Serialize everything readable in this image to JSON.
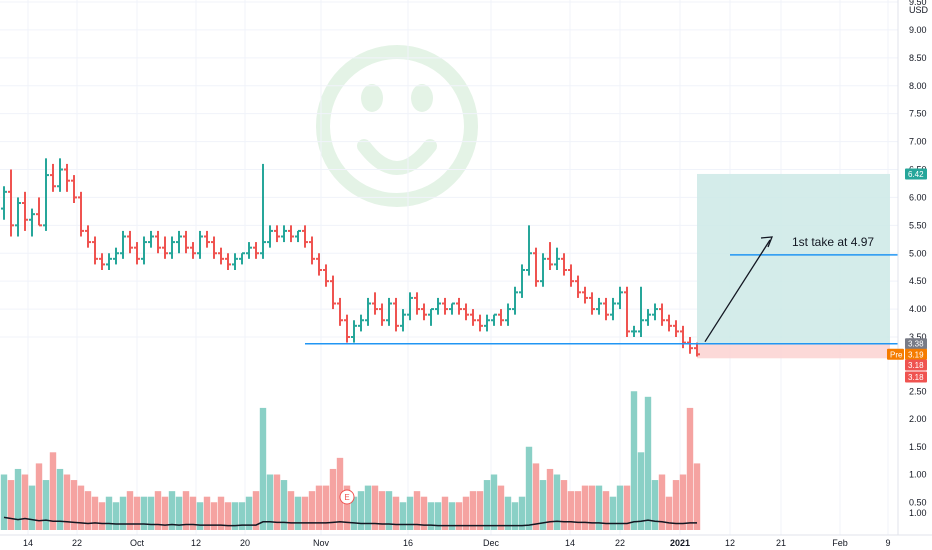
{
  "chart_data": {
    "type": "ohlc",
    "currency_label": "USD",
    "price_axis": {
      "ylim": [
        2.5,
        9.5
      ],
      "ticks": [
        "9.50",
        "9.00",
        "8.50",
        "8.00",
        "7.50",
        "7.00",
        "6.50",
        "6.00",
        "5.50",
        "5.00",
        "4.50",
        "4.00",
        "3.50"
      ]
    },
    "volume_axis": {
      "ylim": [
        0,
        2.9
      ],
      "ticks": [
        "2.50",
        "2.00",
        "1.50",
        "1.00",
        "0.50"
      ]
    },
    "indicator_axis": {
      "ticks": [
        "1.00"
      ]
    },
    "x_ticks": [
      "14",
      "22",
      "Oct",
      "12",
      "20",
      "Nov",
      "16",
      "Dec",
      "14",
      "22",
      "2021",
      "12",
      "21",
      "Feb",
      "9"
    ],
    "price_tags": [
      {
        "label": "6.42",
        "value": 6.42,
        "color": "#26a69a"
      },
      {
        "label": "3.38",
        "value": 3.38,
        "color": "#787b86"
      },
      {
        "label": "3.19",
        "prefix": "Pre",
        "value": 3.19,
        "color": "#f57c00"
      },
      {
        "label": "3.18",
        "value": 3.18,
        "color": "#ef5350"
      },
      {
        "label": "3.18",
        "value": 3.18,
        "color": "#ef5350"
      }
    ],
    "annotation": {
      "text": "1st take at 4.97",
      "target_price": 4.97
    },
    "support_level": 3.38,
    "position": {
      "entry": 3.38,
      "target": 6.42,
      "stop": 3.19
    },
    "earnings_marker": "E",
    "colors": {
      "up": "#26a69a",
      "down": "#ef5350",
      "line": "#2196f3",
      "smiley": "#e4f3e6",
      "profit": "#cde9e6",
      "loss": "#fbd2d1"
    },
    "bars": [
      [
        5.8,
        6.2,
        5.6,
        6.1
      ],
      [
        6.1,
        6.5,
        5.3,
        5.5
      ],
      [
        5.5,
        6.0,
        5.3,
        5.9
      ],
      [
        5.9,
        6.1,
        5.4,
        5.6
      ],
      [
        5.6,
        5.8,
        5.3,
        5.7
      ],
      [
        5.7,
        6.0,
        5.5,
        5.5
      ],
      [
        5.5,
        6.7,
        5.4,
        6.4
      ],
      [
        6.4,
        6.6,
        6.1,
        6.2
      ],
      [
        6.2,
        6.7,
        6.1,
        6.5
      ],
      [
        6.5,
        6.6,
        6.1,
        6.3
      ],
      [
        6.3,
        6.4,
        5.9,
        6.0
      ],
      [
        6.0,
        6.1,
        5.3,
        5.4
      ],
      [
        5.4,
        5.5,
        5.1,
        5.2
      ],
      [
        5.2,
        5.3,
        4.8,
        4.9
      ],
      [
        4.9,
        5.0,
        4.7,
        4.8
      ],
      [
        4.8,
        5.0,
        4.7,
        4.9
      ],
      [
        4.9,
        5.1,
        4.8,
        5.0
      ],
      [
        5.0,
        5.4,
        4.9,
        5.3
      ],
      [
        5.3,
        5.4,
        5.0,
        5.1
      ],
      [
        5.1,
        5.2,
        4.8,
        4.9
      ],
      [
        4.9,
        5.3,
        4.8,
        5.2
      ],
      [
        5.2,
        5.4,
        5.1,
        5.3
      ],
      [
        5.3,
        5.4,
        5.0,
        5.1
      ],
      [
        5.1,
        5.3,
        4.9,
        5.0
      ],
      [
        5.0,
        5.3,
        4.9,
        5.2
      ],
      [
        5.2,
        5.4,
        5.0,
        5.3
      ],
      [
        5.3,
        5.4,
        5.0,
        5.1
      ],
      [
        5.1,
        5.2,
        4.9,
        5.0
      ],
      [
        5.0,
        5.4,
        4.9,
        5.3
      ],
      [
        5.3,
        5.4,
        5.1,
        5.2
      ],
      [
        5.2,
        5.3,
        4.9,
        5.0
      ],
      [
        5.0,
        5.1,
        4.8,
        4.9
      ],
      [
        4.9,
        5.0,
        4.7,
        4.8
      ],
      [
        4.8,
        5.0,
        4.7,
        4.9
      ],
      [
        4.9,
        5.0,
        4.8,
        5.0
      ],
      [
        5.0,
        5.2,
        4.9,
        5.1
      ],
      [
        5.1,
        5.2,
        4.9,
        5.0
      ],
      [
        5.0,
        6.6,
        4.9,
        5.2
      ],
      [
        5.2,
        5.5,
        5.1,
        5.4
      ],
      [
        5.4,
        5.5,
        5.2,
        5.3
      ],
      [
        5.3,
        5.5,
        5.2,
        5.4
      ],
      [
        5.4,
        5.5,
        5.2,
        5.3
      ],
      [
        5.3,
        5.4,
        5.2,
        5.4
      ],
      [
        5.4,
        5.5,
        5.1,
        5.2
      ],
      [
        5.2,
        5.3,
        4.8,
        4.9
      ],
      [
        4.9,
        5.0,
        4.6,
        4.7
      ],
      [
        4.7,
        4.8,
        4.4,
        4.5
      ],
      [
        4.5,
        4.6,
        4.0,
        4.1
      ],
      [
        4.1,
        4.2,
        3.7,
        3.8
      ],
      [
        3.8,
        3.9,
        3.4,
        3.5
      ],
      [
        3.5,
        3.8,
        3.4,
        3.7
      ],
      [
        3.7,
        3.9,
        3.6,
        3.8
      ],
      [
        3.8,
        4.2,
        3.7,
        4.1
      ],
      [
        4.1,
        4.3,
        3.9,
        4.0
      ],
      [
        4.0,
        4.1,
        3.7,
        3.8
      ],
      [
        3.8,
        4.2,
        3.7,
        4.1
      ],
      [
        4.1,
        4.2,
        3.6,
        3.7
      ],
      [
        3.7,
        4.0,
        3.6,
        3.9
      ],
      [
        3.9,
        4.3,
        3.8,
        4.2
      ],
      [
        4.2,
        4.3,
        3.9,
        4.0
      ],
      [
        4.0,
        4.1,
        3.8,
        3.9
      ],
      [
        3.9,
        4.0,
        3.7,
        4.0
      ],
      [
        4.0,
        4.2,
        3.9,
        4.1
      ],
      [
        4.1,
        4.2,
        3.9,
        4.0
      ],
      [
        4.0,
        4.1,
        3.9,
        4.1
      ],
      [
        4.1,
        4.2,
        3.9,
        4.0
      ],
      [
        4.0,
        4.1,
        3.8,
        3.9
      ],
      [
        3.9,
        4.0,
        3.7,
        3.8
      ],
      [
        3.8,
        3.9,
        3.6,
        3.7
      ],
      [
        3.7,
        3.9,
        3.6,
        3.8
      ],
      [
        3.8,
        3.9,
        3.7,
        3.9
      ],
      [
        3.9,
        4.0,
        3.7,
        3.8
      ],
      [
        3.8,
        4.1,
        3.7,
        4.0
      ],
      [
        4.0,
        4.4,
        3.9,
        4.3
      ],
      [
        4.3,
        4.8,
        4.2,
        4.7
      ],
      [
        4.7,
        5.5,
        4.6,
        5.0
      ],
      [
        5.0,
        5.1,
        4.4,
        4.5
      ],
      [
        4.5,
        5.0,
        4.4,
        4.9
      ],
      [
        4.9,
        5.2,
        4.7,
        4.8
      ],
      [
        4.8,
        5.1,
        4.7,
        4.9
      ],
      [
        4.9,
        5.0,
        4.6,
        4.7
      ],
      [
        4.7,
        4.8,
        4.4,
        4.5
      ],
      [
        4.5,
        4.6,
        4.2,
        4.3
      ],
      [
        4.3,
        4.4,
        4.1,
        4.2
      ],
      [
        4.2,
        4.3,
        3.9,
        4.0
      ],
      [
        4.0,
        4.2,
        3.9,
        4.1
      ],
      [
        4.1,
        4.2,
        3.8,
        3.9
      ],
      [
        3.9,
        4.2,
        3.8,
        4.1
      ],
      [
        4.1,
        4.4,
        4.0,
        4.3
      ],
      [
        4.3,
        4.4,
        3.5,
        3.6
      ],
      [
        3.6,
        3.7,
        3.5,
        3.6
      ],
      [
        3.6,
        4.4,
        3.5,
        3.8
      ],
      [
        3.8,
        4.0,
        3.7,
        3.9
      ],
      [
        3.9,
        4.1,
        3.8,
        4.0
      ],
      [
        4.0,
        4.1,
        3.7,
        3.8
      ],
      [
        3.8,
        3.9,
        3.6,
        3.7
      ],
      [
        3.7,
        3.8,
        3.5,
        3.6
      ],
      [
        3.6,
        3.7,
        3.3,
        3.4
      ],
      [
        3.4,
        3.5,
        3.2,
        3.3
      ],
      [
        3.3,
        3.4,
        3.15,
        3.19
      ]
    ],
    "volume": [
      1.0,
      0.9,
      1.1,
      1.0,
      0.8,
      1.2,
      0.9,
      1.4,
      1.1,
      1.0,
      0.9,
      0.8,
      0.7,
      0.6,
      0.5,
      0.6,
      0.5,
      0.6,
      0.7,
      0.6,
      0.6,
      0.6,
      0.7,
      0.6,
      0.7,
      0.6,
      0.7,
      0.6,
      0.5,
      0.6,
      0.5,
      0.6,
      0.5,
      0.5,
      0.5,
      0.6,
      0.7,
      2.2,
      1.0,
      1.0,
      0.9,
      0.7,
      0.6,
      0.6,
      0.7,
      0.8,
      0.8,
      1.1,
      1.3,
      0.8,
      0.6,
      0.7,
      0.8,
      0.8,
      0.7,
      0.7,
      0.6,
      0.5,
      0.6,
      0.7,
      0.6,
      0.5,
      0.5,
      0.6,
      0.5,
      0.5,
      0.6,
      0.7,
      0.7,
      0.9,
      1.0,
      0.8,
      0.6,
      0.5,
      0.6,
      1.5,
      1.2,
      0.9,
      1.1,
      1.0,
      0.9,
      0.7,
      0.7,
      0.8,
      0.8,
      0.8,
      0.7,
      0.6,
      0.8,
      0.8,
      2.5,
      1.4,
      2.4,
      0.9,
      1.0,
      0.6,
      0.9,
      1.0,
      2.2,
      1.2
    ],
    "indicator": [
      0.92,
      0.9,
      0.88,
      0.9,
      0.88,
      0.86,
      0.87,
      0.85,
      0.85,
      0.84,
      0.83,
      0.82,
      0.81,
      0.82,
      0.81,
      0.81,
      0.8,
      0.8,
      0.8,
      0.8,
      0.8,
      0.79,
      0.79,
      0.78,
      0.79,
      0.78,
      0.79,
      0.79,
      0.78,
      0.78,
      0.78,
      0.78,
      0.77,
      0.77,
      0.78,
      0.78,
      0.78,
      0.84,
      0.84,
      0.83,
      0.83,
      0.82,
      0.82,
      0.82,
      0.82,
      0.82,
      0.82,
      0.83,
      0.84,
      0.83,
      0.82,
      0.81,
      0.81,
      0.81,
      0.8,
      0.8,
      0.79,
      0.79,
      0.79,
      0.79,
      0.78,
      0.78,
      0.77,
      0.77,
      0.77,
      0.77,
      0.77,
      0.77,
      0.77,
      0.77,
      0.77,
      0.77,
      0.77,
      0.77,
      0.77,
      0.78,
      0.8,
      0.82,
      0.84,
      0.85,
      0.84,
      0.84,
      0.83,
      0.83,
      0.82,
      0.82,
      0.81,
      0.81,
      0.81,
      0.81,
      0.84,
      0.85,
      0.87,
      0.85,
      0.84,
      0.82,
      0.81,
      0.81,
      0.82,
      0.82
    ]
  }
}
